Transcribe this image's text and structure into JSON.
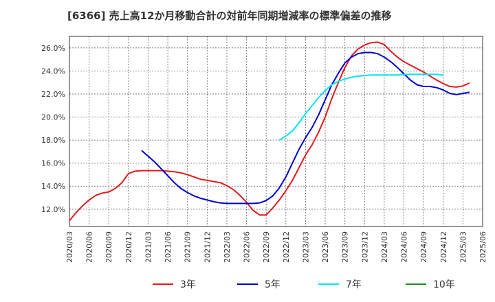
{
  "chart_data": {
    "type": "line",
    "title": "[6366]  売上高12か月移動合計の対前年同期増減率の標準偏差の推移",
    "xlabel": "",
    "ylabel": "",
    "ylim": [
      10.5,
      27.0
    ],
    "y_ticks": [
      "12.0%",
      "14.0%",
      "16.0%",
      "18.0%",
      "20.0%",
      "22.0%",
      "24.0%",
      "26.0%"
    ],
    "y_tick_values": [
      12,
      14,
      16,
      18,
      20,
      22,
      24,
      26
    ],
    "x_ticks": [
      "2020/03",
      "2020/06",
      "2020/09",
      "2020/12",
      "2021/03",
      "2021/06",
      "2021/09",
      "2021/12",
      "2022/03",
      "2022/06",
      "2022/09",
      "2022/12",
      "2023/03",
      "2023/06",
      "2023/09",
      "2023/12",
      "2024/03",
      "2024/06",
      "2024/09",
      "2024/12",
      "2025/03",
      "2025/06"
    ],
    "grid": true,
    "legend_position": "bottom",
    "series": [
      {
        "name": "3年",
        "color": "#e31a1c",
        "start": "2020/03",
        "values": [
          11.0,
          11.7,
          12.3,
          12.8,
          13.2,
          13.4,
          13.5,
          13.8,
          14.3,
          15.1,
          15.3,
          15.35,
          15.35,
          15.35,
          15.35,
          15.3,
          15.25,
          15.15,
          15.0,
          14.8,
          14.6,
          14.5,
          14.4,
          14.3,
          14.05,
          13.7,
          13.2,
          12.6,
          11.9,
          11.5,
          11.5,
          12.1,
          12.8,
          13.6,
          14.5,
          15.6,
          16.7,
          17.6,
          18.7,
          20.0,
          21.6,
          23.0,
          24.3,
          25.3,
          25.9,
          26.25,
          26.45,
          26.5,
          26.3,
          25.7,
          25.2,
          24.8,
          24.5,
          24.2,
          23.9,
          23.55,
          23.2,
          22.9,
          22.65,
          22.6,
          22.7,
          22.95
        ]
      },
      {
        "name": "5年",
        "color": "#0000cd",
        "start": "2021/02",
        "values": [
          17.1,
          16.6,
          16.1,
          15.5,
          14.9,
          14.3,
          13.8,
          13.45,
          13.15,
          12.95,
          12.8,
          12.65,
          12.55,
          12.5,
          12.5,
          12.5,
          12.5,
          12.5,
          12.55,
          12.75,
          13.15,
          13.85,
          14.8,
          16.0,
          17.2,
          18.2,
          19.1,
          20.2,
          21.5,
          22.8,
          23.8,
          24.7,
          25.2,
          25.5,
          25.6,
          25.6,
          25.5,
          25.2,
          24.8,
          24.3,
          23.75,
          23.2,
          22.8,
          22.65,
          22.65,
          22.55,
          22.35,
          22.05,
          21.95,
          22.05,
          22.15
        ]
      },
      {
        "name": "7年",
        "color": "#00e5ee",
        "start": "2022/11",
        "values": [
          18.0,
          18.35,
          18.8,
          19.5,
          20.3,
          21.0,
          21.7,
          22.3,
          22.8,
          23.1,
          23.3,
          23.45,
          23.55,
          23.6,
          23.65,
          23.65,
          23.65,
          23.65,
          23.65,
          23.7,
          23.7,
          23.7,
          23.7,
          23.7,
          23.7,
          23.65
        ]
      },
      {
        "name": "10年",
        "color": "#228b22",
        "start": "",
        "values": []
      }
    ]
  }
}
